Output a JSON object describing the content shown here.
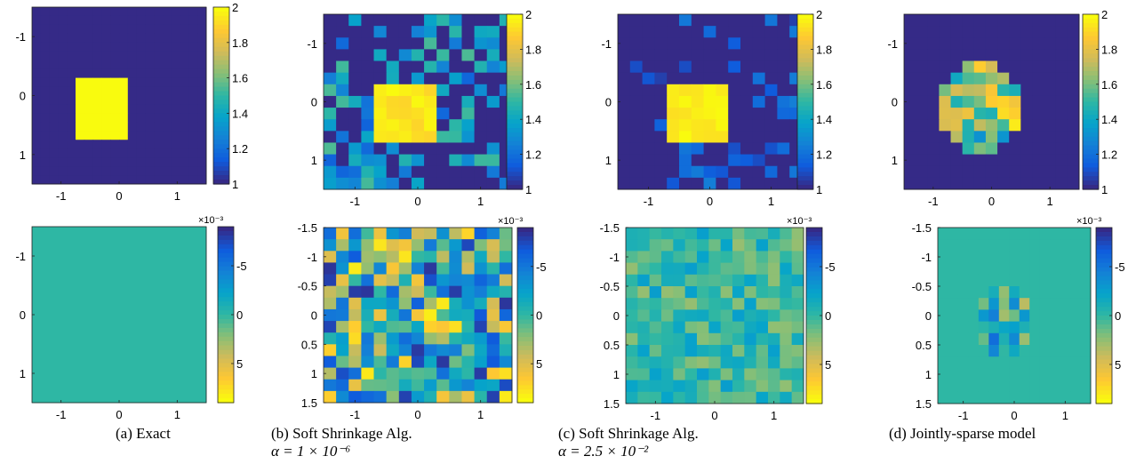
{
  "figure": {
    "captions": [
      {
        "label": "(a) Exact",
        "formula": ""
      },
      {
        "label": "(b) Soft Shrinkage Alg.",
        "formula": "α = 1 × 10⁻⁶"
      },
      {
        "label": "(c) Soft Shrinkage Alg.",
        "formula": "α = 2.5 × 10⁻²"
      },
      {
        "label": "(d) Jointly-sparse model",
        "formula": ""
      }
    ]
  },
  "colors": {
    "parula": [
      "#352A87",
      "#0F5CDD",
      "#1481D6",
      "#06A4CA",
      "#2EB7A4",
      "#87BF77",
      "#D1BB59",
      "#FEC832",
      "#F9FB0E"
    ],
    "background_low": "#352A87",
    "inclusion_high": "#F9FB0E",
    "zero_teal": "#45B99C"
  },
  "chart_data": [
    {
      "type": "heatmap",
      "panel": "a-top",
      "title": "",
      "x_ticks": [
        "-1",
        "0",
        "1"
      ],
      "y_ticks": [
        "-1",
        "0",
        "1"
      ],
      "xlim": [
        -1.5,
        1.5
      ],
      "ylim": [
        -1.5,
        1.5
      ],
      "colorbar": {
        "min": 1,
        "max": 2,
        "ticks": [
          "1",
          "1.2",
          "1.4",
          "1.6",
          "1.8",
          "2"
        ],
        "reversed": false,
        "exponent": ""
      },
      "grid": [
        20,
        20
      ],
      "content": "uniform value 1 with a square of value 2 spanning x -0.75..0.25, y -0.25..0.75"
    },
    {
      "type": "heatmap",
      "panel": "b-top",
      "title": "",
      "x_ticks": [
        "-1",
        "0",
        "1"
      ],
      "y_ticks": [
        "-1",
        "0",
        "1"
      ],
      "xlim": [
        -1.5,
        1.5
      ],
      "ylim": [
        -1.5,
        1.5
      ],
      "colorbar": {
        "min": 1,
        "max": 2,
        "ticks": [
          "1",
          "1.2",
          "1.4",
          "1.6",
          "1.8",
          "2"
        ],
        "reversed": false,
        "exponent": ""
      },
      "grid": [
        15,
        15
      ],
      "content": "recovered square of value ~2 with many scattered noisy pixels (1.1-1.5)"
    },
    {
      "type": "heatmap",
      "panel": "c-top",
      "title": "",
      "x_ticks": [
        "-1",
        "0",
        "1"
      ],
      "y_ticks": [
        "-1",
        "0",
        "1"
      ],
      "xlim": [
        -1.5,
        1.5
      ],
      "ylim": [
        -1.5,
        1.5
      ],
      "colorbar": {
        "min": 1,
        "max": 2,
        "ticks": [
          "1",
          "1.2",
          "1.4",
          "1.6",
          "1.8",
          "2"
        ],
        "reversed": false,
        "exponent": ""
      },
      "grid": [
        15,
        15
      ],
      "content": "recovered square of value ~2 with sparse faint noisy pixels"
    },
    {
      "type": "heatmap",
      "panel": "d-top",
      "title": "",
      "x_ticks": [
        "-1",
        "0",
        "1"
      ],
      "y_ticks": [
        "-1",
        "0",
        "1"
      ],
      "xlim": [
        -1.5,
        1.5
      ],
      "ylim": [
        -1.5,
        1.5
      ],
      "colorbar": {
        "min": 1,
        "max": 2,
        "ticks": [
          "1",
          "1.2",
          "1.4",
          "1.6",
          "1.8",
          "2"
        ],
        "reversed": false,
        "exponent": ""
      },
      "grid": [
        15,
        15
      ],
      "content": "ring-shaped blob of mixed values 1.2-2 centred near (-0.2, 0.1), rest value 1"
    },
    {
      "type": "heatmap",
      "panel": "a-bottom",
      "title": "",
      "x_ticks": [
        "-1",
        "0",
        "1"
      ],
      "y_ticks": [
        "-1",
        "0",
        "1"
      ],
      "xlim": [
        -1.5,
        1.5
      ],
      "ylim": [
        -1.5,
        1.5
      ],
      "colorbar": {
        "min": -0.009,
        "max": 0.009,
        "ticks": [
          "5",
          "0",
          "-5"
        ],
        "reversed": true,
        "exponent": "×10⁻³"
      },
      "grid": [
        1,
        1
      ],
      "content": "uniform value 0"
    },
    {
      "type": "heatmap",
      "panel": "b-bottom",
      "title": "",
      "x_ticks": [
        "-1",
        "0",
        "1"
      ],
      "y_ticks": [
        "-1.5",
        "-1",
        "-0.5",
        "0",
        "0.5",
        "1",
        "1.5"
      ],
      "xlim": [
        -1.5,
        1.5
      ],
      "ylim": [
        -1.5,
        1.5
      ],
      "colorbar": {
        "min": -0.009,
        "max": 0.009,
        "ticks": [
          "5",
          "0",
          "-5"
        ],
        "reversed": true,
        "exponent": "×10⁻³"
      },
      "grid": [
        15,
        15
      ],
      "content": "noise field of values roughly -8e-3..8e-3"
    },
    {
      "type": "heatmap",
      "panel": "c-bottom",
      "title": "",
      "x_ticks": [
        "-1",
        "0",
        "1"
      ],
      "y_ticks": [
        "-1.5",
        "-1",
        "-0.5",
        "0",
        "0.5",
        "1",
        "1.5"
      ],
      "xlim": [
        -1.5,
        1.5
      ],
      "ylim": [
        -1.5,
        1.5
      ],
      "colorbar": {
        "min": -0.009,
        "max": 0.009,
        "ticks": [
          "5",
          "0",
          "-5"
        ],
        "reversed": true,
        "exponent": "×10⁻³"
      },
      "grid": [
        15,
        15
      ],
      "content": "weak noise field of values roughly -3e-3..3e-3"
    },
    {
      "type": "heatmap",
      "panel": "d-bottom",
      "title": "",
      "x_ticks": [
        "-1",
        "0",
        "1"
      ],
      "y_ticks": [
        "-1.5",
        "-1",
        "-0.5",
        "0",
        "0.5",
        "1",
        "1.5"
      ],
      "xlim": [
        -1.5,
        1.5
      ],
      "ylim": [
        -1.5,
        1.5
      ],
      "colorbar": {
        "min": -0.009,
        "max": 0.009,
        "ticks": [
          "5",
          "0",
          "-5"
        ],
        "reversed": true,
        "exponent": "×10⁻³"
      },
      "grid": [
        15,
        15
      ],
      "content": "zero everywhere except a small blob of values -4e-3..6e-3 near (-0.2, 0.1)"
    }
  ]
}
